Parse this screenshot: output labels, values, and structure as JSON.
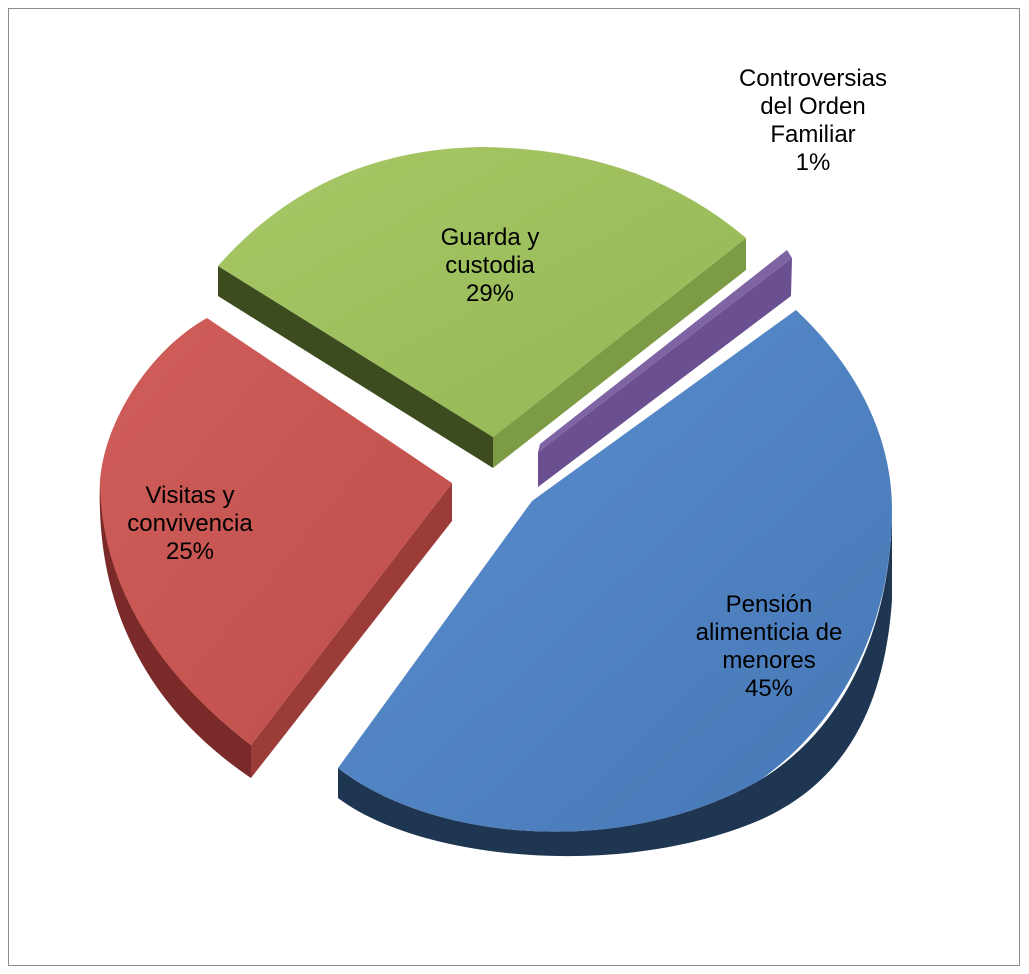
{
  "chart_data": {
    "type": "pie",
    "style": "3d-exploded",
    "title": "",
    "legend": "none",
    "slices": [
      {
        "label_lines": [
          "Pensión",
          "alimenticia de",
          "menores"
        ],
        "percent_label": "45%",
        "value": 45,
        "color": "#4F81BD",
        "side_color": "#1F3A5F"
      },
      {
        "label_lines": [
          "Visitas y",
          "convivencia"
        ],
        "percent_label": "25%",
        "value": 25,
        "color": "#C0504D",
        "side_color": "#6E2321"
      },
      {
        "label_lines": [
          "Guarda y",
          "custodia"
        ],
        "percent_label": "29%",
        "value": 29,
        "color": "#9BBB59",
        "side_color": "#3E4D20"
      },
      {
        "label_lines": [
          "Controversias",
          "del Orden",
          "Familiar"
        ],
        "percent_label": "1%",
        "value": 1,
        "color": "#8064A2",
        "side_color": "#4A3760"
      }
    ]
  }
}
